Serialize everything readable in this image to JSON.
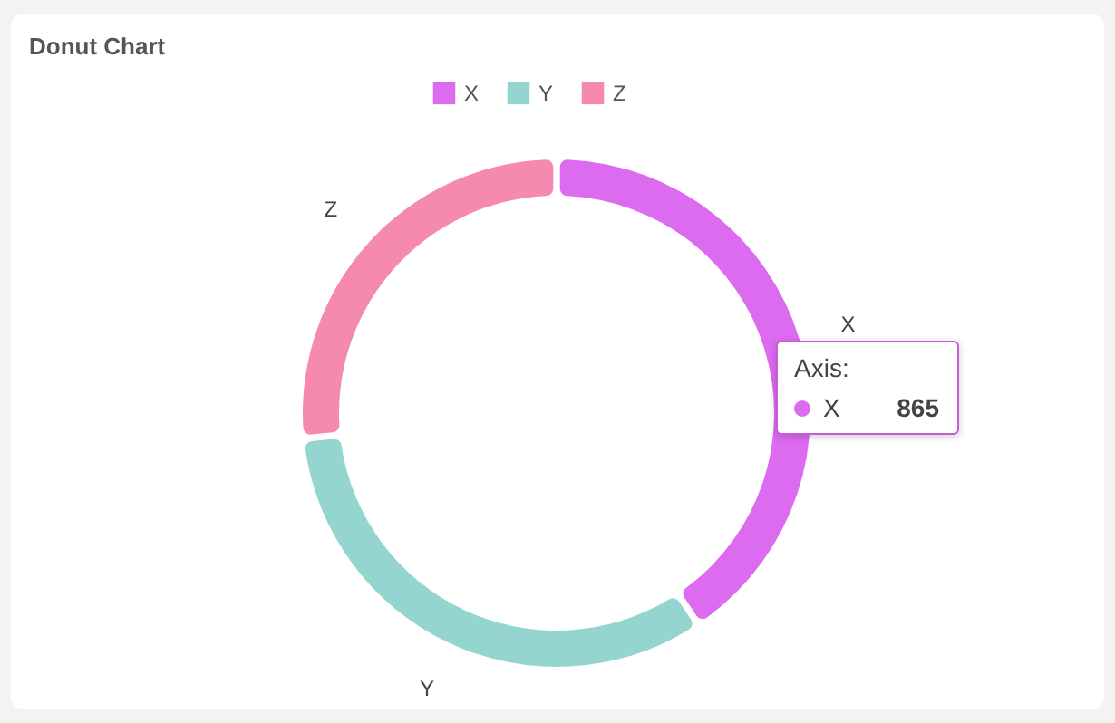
{
  "chart_data": {
    "type": "donut",
    "title": "Donut Chart",
    "categories": [
      "X",
      "Y",
      "Z"
    ],
    "values": [
      40.6,
      32.8,
      26.6
    ],
    "colors": [
      "#dd6bf0",
      "#95d5cf",
      "#f589b0"
    ],
    "legend": "top",
    "annotations": [
      "Axis:",
      "865"
    ]
  }
}
